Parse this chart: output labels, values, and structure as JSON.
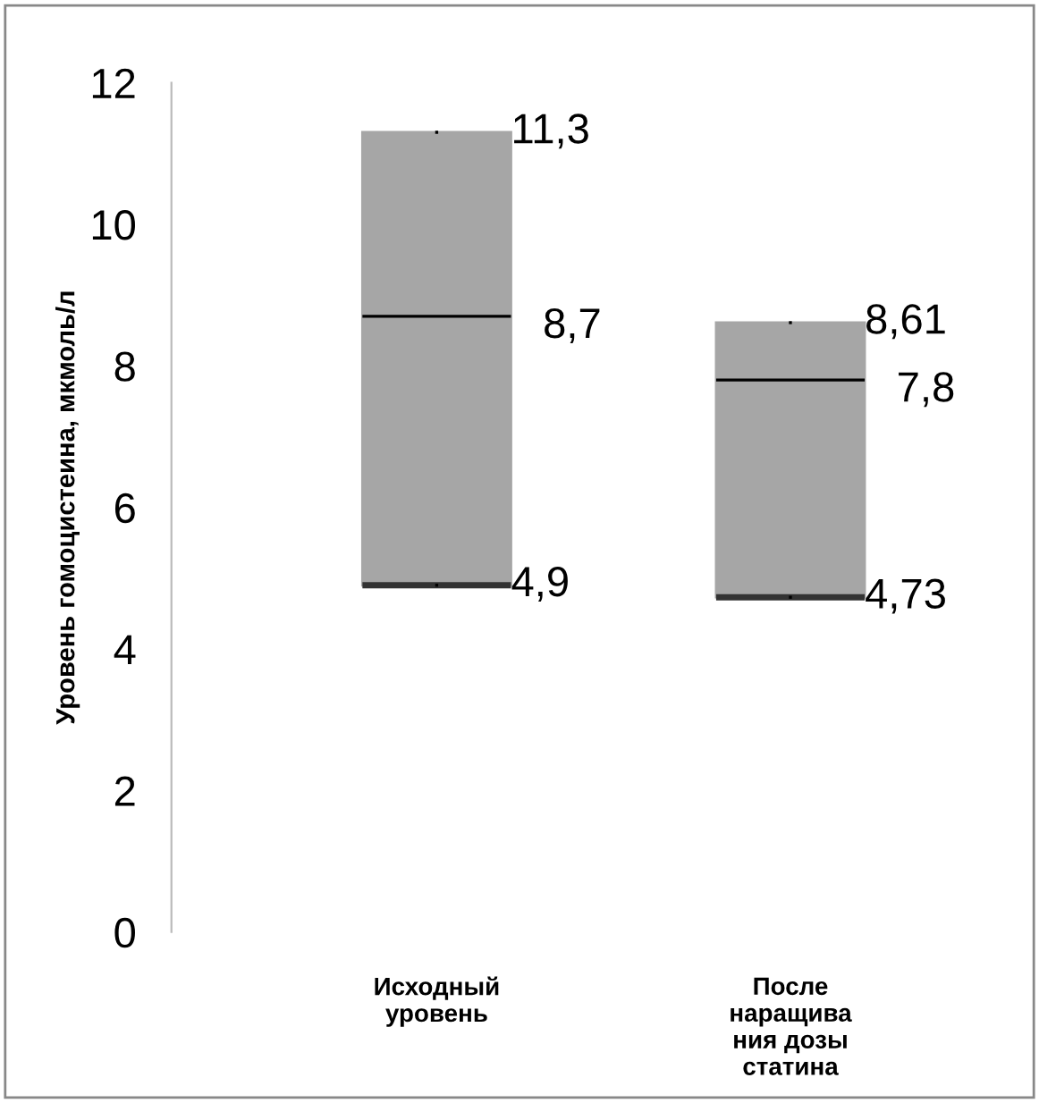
{
  "chart_data": {
    "type": "box",
    "ylabel": "Уровень гомоцистеина, мкмоль/л",
    "categories": [
      "Исходный\nуровень",
      "После\nнаращива\nния дозы\nстатина"
    ],
    "series": [
      {
        "color": "#a6a6a6",
        "boxes": [
          {
            "low": 4.9,
            "q1": 4.9,
            "median": 8.7,
            "q3": 11.3,
            "high": 11.3
          },
          {
            "low": 4.73,
            "q1": 4.73,
            "median": 7.8,
            "q3": 8.61,
            "high": 8.61
          }
        ]
      }
    ],
    "annotations": [
      {
        "text": "11,3",
        "x": "Исходный\nуровень",
        "y": 11.3
      },
      {
        "text": "8,7",
        "x": "Исходный\nуровень",
        "y": 8.7
      },
      {
        "text": "4,9",
        "x": "Исходный\nуровень",
        "y": 4.9
      },
      {
        "text": "8,61",
        "x": "После\nнаращива\nния дозы\nстатина",
        "y": 8.61
      },
      {
        "text": "7,8",
        "x": "После\nнаращива\nния дозы\nстатина",
        "y": 7.8
      },
      {
        "text": "4,73",
        "x": "После\nнаращива\nния дозы\nстатина",
        "y": 4.73
      }
    ],
    "ylim": [
      0,
      12
    ],
    "yticks": [
      0,
      2,
      4,
      6,
      8,
      10,
      12
    ],
    "grid": false,
    "legend": false
  }
}
